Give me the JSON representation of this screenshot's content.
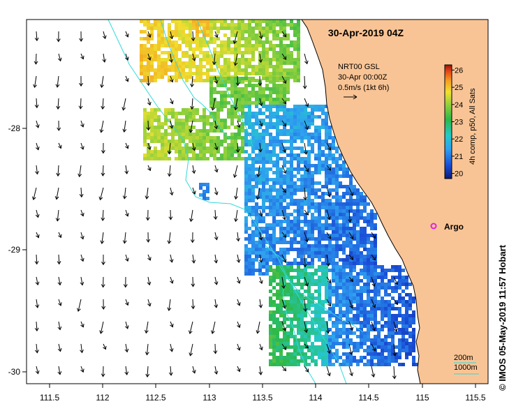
{
  "map": {
    "title": "30-Apr-2019 04Z",
    "x_ticks": [
      "111.5",
      "112",
      "112.5",
      "113",
      "113.5",
      "114",
      "114.5",
      "115",
      "115.5"
    ],
    "y_ticks": [
      "-28",
      "-29",
      "-30"
    ],
    "current_legend": {
      "line1": "NRT00 GSL",
      "line2": "30-Apr 00:00Z",
      "line3": "0.5m/s (1kt 6h)"
    },
    "colorbar": {
      "label": "4h comp, p50, All Sats",
      "ticks": [
        "26",
        "25",
        "24",
        "23",
        "22",
        "21",
        "20"
      ],
      "range": [
        19.7,
        26.3
      ]
    },
    "argo_label": "Argo",
    "depth_labels": [
      "200m",
      "1000m"
    ],
    "credit": "© IMOS 05-May-2019 11:57 Hobart",
    "colors": {
      "land": "#f9c495",
      "bathymetry": "#33d9d9",
      "argo": "#e020e0"
    }
  }
}
